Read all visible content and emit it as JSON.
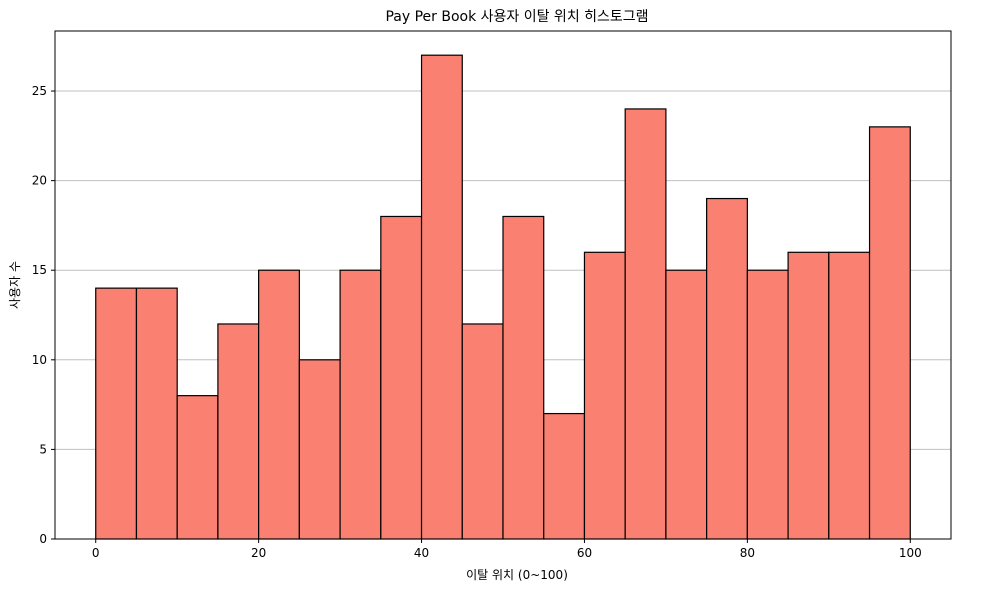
{
  "chart_data": {
    "type": "bar",
    "subtype": "histogram",
    "title": "Pay Per Book 사용자 이탈 위치 히스토그램",
    "xlabel": "이탈 위치 (0~100)",
    "ylabel": "사용자 수",
    "bin_edges": [
      0,
      5,
      10,
      15,
      20,
      25,
      30,
      35,
      40,
      45,
      50,
      55,
      60,
      65,
      70,
      75,
      80,
      85,
      90,
      95,
      100
    ],
    "values": [
      14,
      14,
      8,
      12,
      15,
      10,
      15,
      18,
      27,
      12,
      18,
      7,
      16,
      24,
      15,
      19,
      15,
      16,
      16,
      23
    ],
    "xlim": [
      -5,
      105
    ],
    "ylim": [
      0,
      28.35
    ],
    "xticks": [
      0,
      20,
      40,
      60,
      80,
      100
    ],
    "yticks": [
      0,
      5,
      10,
      15,
      20,
      25
    ],
    "grid": "y",
    "bar_color": "#fa8072",
    "edge_color": "#000000",
    "grid_color": "#c0c0c0"
  }
}
